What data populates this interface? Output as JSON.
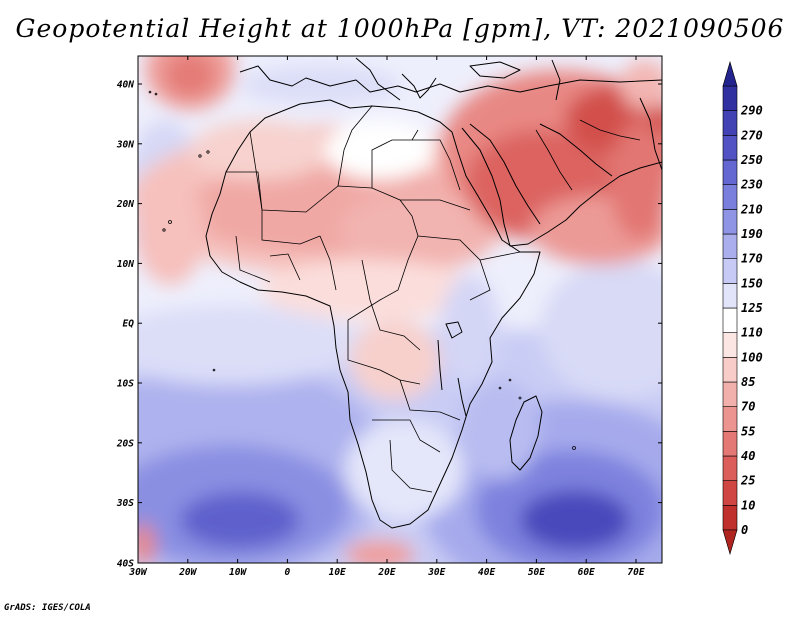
{
  "title": "Geopotential Height at 1000hPa [gpm], VT: 2021090506",
  "footer": "GrADS: IGES/COLA",
  "map": {
    "lat_ticks": [
      "40N",
      "30N",
      "20N",
      "10N",
      "EQ",
      "10S",
      "20S",
      "30S",
      "40S"
    ],
    "lon_ticks": [
      "30W",
      "20W",
      "10W",
      "0",
      "10E",
      "20E",
      "30E",
      "40E",
      "50E",
      "60E",
      "70E"
    ]
  },
  "colorbar": {
    "levels": [
      "0",
      "10",
      "25",
      "40",
      "55",
      "70",
      "85",
      "100",
      "110",
      "125",
      "150",
      "170",
      "190",
      "210",
      "230",
      "250",
      "270",
      "290"
    ],
    "colors": [
      "#c0302c",
      "#d04642",
      "#dc5e5a",
      "#e47874",
      "#ec9490",
      "#f2b0ac",
      "#f8ccc8",
      "#fbe6e4",
      "#ffffff",
      "#e2e4fa",
      "#c6caf4",
      "#aaaeec",
      "#9094e4",
      "#7a7edc",
      "#6466d2",
      "#5252c4",
      "#4242b4",
      "#3030a0"
    ]
  },
  "colors": {
    "low": "#c0302c",
    "high": "#2a2a9c",
    "mid": "#ffffff"
  }
}
